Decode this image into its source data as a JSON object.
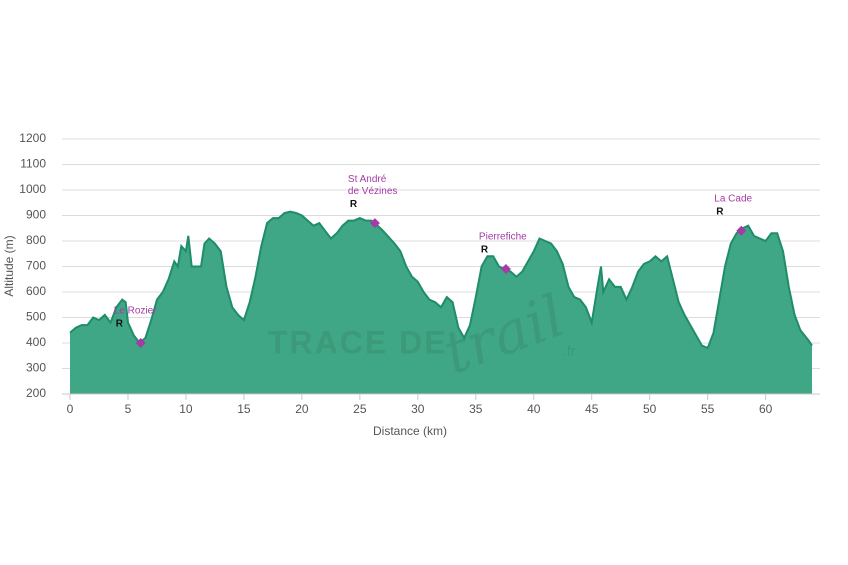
{
  "chart_data": {
    "type": "area",
    "xlabel": "Distance (km)",
    "ylabel": "Altitude (m)",
    "color": "#3fa785",
    "line_color": "#1f8c6b",
    "grid": true,
    "xlim": [
      0,
      64
    ],
    "ylim": [
      200,
      1200
    ],
    "xticks": [
      0,
      5,
      10,
      15,
      20,
      25,
      30,
      35,
      40,
      45,
      50,
      55,
      60
    ],
    "yticks": [
      200,
      300,
      400,
      500,
      600,
      700,
      800,
      900,
      1000,
      1100,
      1200
    ],
    "x": [
      0,
      0.5,
      1,
      1.5,
      2,
      2.5,
      3,
      3.5,
      4,
      4.5,
      4.8,
      5,
      5.5,
      6,
      6.5,
      7,
      7.5,
      8,
      8.5,
      9,
      9.3,
      9.6,
      10,
      10.2,
      10.5,
      11,
      11.3,
      11.6,
      12,
      12.5,
      13,
      13.5,
      14,
      14.5,
      15,
      15.5,
      16,
      16.5,
      17,
      17.5,
      18,
      18.5,
      19,
      19.5,
      20,
      20.5,
      21,
      21.5,
      22,
      22.5,
      23,
      23.5,
      24,
      24.5,
      25,
      25.5,
      26,
      26.3,
      27,
      28,
      28.5,
      29,
      29.5,
      30,
      30.5,
      31,
      31.5,
      32,
      32.5,
      33,
      33.5,
      34,
      34.5,
      35,
      35.5,
      36,
      36.5,
      37,
      37.5,
      38,
      38.5,
      39,
      39.5,
      40,
      40.5,
      41,
      41.5,
      42,
      42.5,
      43,
      43.5,
      44,
      44.5,
      45,
      45.5,
      45.8,
      46,
      46.5,
      47,
      47.5,
      48,
      48.5,
      49,
      49.5,
      50,
      50.5,
      51,
      51.5,
      52,
      52.5,
      53,
      53.5,
      54,
      54.5,
      55,
      55.5,
      56,
      56.5,
      57,
      57.5,
      58,
      58.5,
      59,
      59.5,
      60,
      60.5,
      61,
      61.5,
      62,
      62.5,
      63,
      63.7,
      64
    ],
    "values": [
      440,
      460,
      470,
      470,
      500,
      490,
      510,
      480,
      540,
      570,
      560,
      480,
      430,
      400,
      420,
      490,
      570,
      600,
      650,
      720,
      700,
      780,
      760,
      820,
      700,
      700,
      700,
      790,
      810,
      790,
      760,
      620,
      540,
      510,
      490,
      560,
      660,
      780,
      870,
      890,
      890,
      910,
      915,
      910,
      900,
      880,
      860,
      870,
      840,
      810,
      830,
      860,
      880,
      880,
      890,
      880,
      880,
      870,
      840,
      790,
      760,
      700,
      660,
      640,
      600,
      570,
      560,
      540,
      580,
      560,
      460,
      420,
      470,
      580,
      700,
      740,
      740,
      700,
      690,
      680,
      660,
      680,
      720,
      760,
      810,
      800,
      790,
      760,
      710,
      620,
      580,
      570,
      540,
      480,
      620,
      700,
      600,
      650,
      620,
      620,
      570,
      620,
      680,
      710,
      720,
      740,
      720,
      740,
      650,
      560,
      510,
      470,
      430,
      390,
      380,
      440,
      570,
      700,
      790,
      830,
      850,
      860,
      820,
      810,
      800,
      830,
      830,
      760,
      620,
      510,
      450,
      410,
      390
    ],
    "waypoints": [
      {
        "x": 6.1,
        "y": 400,
        "label": [
          "Le Rozier"
        ],
        "marker": "R"
      },
      {
        "x": 26.3,
        "y": 870,
        "label": [
          "St André",
          "de Vézines"
        ],
        "marker": "R"
      },
      {
        "x": 37.6,
        "y": 690,
        "label": [
          "Pierrefiche"
        ],
        "marker": "R"
      },
      {
        "x": 57.9,
        "y": 840,
        "label": [
          "La Cade"
        ],
        "marker": "R"
      }
    ],
    "watermark": {
      "brand": "TRACE DE",
      "script": "trail",
      "suffix": ".fr"
    }
  }
}
